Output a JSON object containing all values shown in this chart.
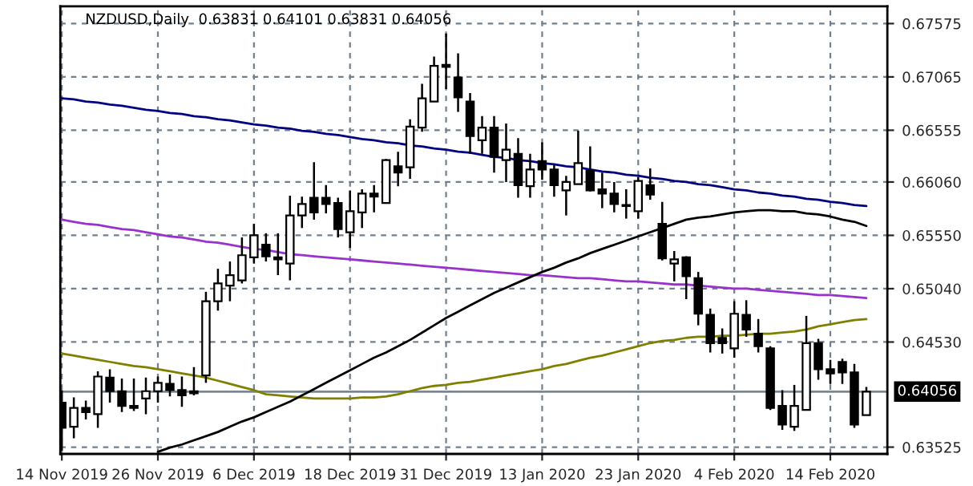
{
  "chart_data": {
    "type": "candlestick",
    "title": "NZDUSD,Daily  0.63831 0.64101 0.63831 0.64056",
    "categories": [
      "14 Nov 2019",
      null,
      null,
      null,
      null,
      null,
      null,
      null,
      "26 Nov 2019",
      null,
      null,
      null,
      null,
      null,
      null,
      null,
      "6 Dec 2019",
      null,
      null,
      null,
      null,
      null,
      null,
      null,
      "18 Dec 2019",
      null,
      null,
      null,
      null,
      null,
      null,
      null,
      "31 Dec 2019",
      null,
      null,
      null,
      null,
      null,
      null,
      null,
      "13 Jan 2020",
      null,
      null,
      null,
      null,
      null,
      null,
      null,
      "23 Jan 2020",
      null,
      null,
      null,
      null,
      null,
      null,
      null,
      "4 Feb 2020",
      null,
      null,
      null,
      null,
      null,
      null,
      null,
      "14 Feb 2020",
      null,
      null,
      null
    ],
    "ohlc": [
      [
        0.6395,
        0.6407,
        0.6349,
        0.6371
      ],
      [
        0.6372,
        0.64,
        0.6361,
        0.639
      ],
      [
        0.639,
        0.6397,
        0.6379,
        0.6386
      ],
      [
        0.6384,
        0.6425,
        0.6371,
        0.642
      ],
      [
        0.6419,
        0.6427,
        0.6395,
        0.6406
      ],
      [
        0.6406,
        0.6418,
        0.6386,
        0.6392
      ],
      [
        0.6392,
        0.6418,
        0.6387,
        0.639
      ],
      [
        0.6399,
        0.6419,
        0.6384,
        0.6406
      ],
      [
        0.6406,
        0.642,
        0.6395,
        0.6414
      ],
      [
        0.6413,
        0.6422,
        0.6401,
        0.6407
      ],
      [
        0.6407,
        0.642,
        0.6391,
        0.6402
      ],
      [
        0.6406,
        0.6429,
        0.6402,
        0.6404
      ],
      [
        0.6421,
        0.6501,
        0.6414,
        0.6492
      ],
      [
        0.6492,
        0.6523,
        0.6483,
        0.6509
      ],
      [
        0.6507,
        0.653,
        0.6492,
        0.6517
      ],
      [
        0.6512,
        0.6553,
        0.6509,
        0.6536
      ],
      [
        0.6534,
        0.6566,
        0.6528,
        0.6555
      ],
      [
        0.6546,
        0.6557,
        0.653,
        0.6535
      ],
      [
        0.6534,
        0.6557,
        0.6517,
        0.6532
      ],
      [
        0.6528,
        0.6593,
        0.6512,
        0.6574
      ],
      [
        0.6574,
        0.6592,
        0.6562,
        0.6585
      ],
      [
        0.6591,
        0.6625,
        0.657,
        0.6577
      ],
      [
        0.6591,
        0.6603,
        0.6576,
        0.6585
      ],
      [
        0.6586,
        0.6591,
        0.6553,
        0.6561
      ],
      [
        0.6558,
        0.6598,
        0.6543,
        0.6578
      ],
      [
        0.6577,
        0.6599,
        0.6562,
        0.6595
      ],
      [
        0.6595,
        0.6603,
        0.6577,
        0.6592
      ],
      [
        0.6586,
        0.6628,
        0.6586,
        0.6627
      ],
      [
        0.6621,
        0.6635,
        0.6602,
        0.6615
      ],
      [
        0.662,
        0.6666,
        0.6609,
        0.6659
      ],
      [
        0.6658,
        0.67,
        0.6654,
        0.6686
      ],
      [
        0.6683,
        0.6726,
        0.6683,
        0.6717
      ],
      [
        0.6718,
        0.6748,
        0.6695,
        0.6716
      ],
      [
        0.6706,
        0.6729,
        0.6673,
        0.6687
      ],
      [
        0.6683,
        0.6691,
        0.6633,
        0.665
      ],
      [
        0.6646,
        0.6669,
        0.6633,
        0.6658
      ],
      [
        0.6658,
        0.6669,
        0.6615,
        0.663
      ],
      [
        0.6627,
        0.6662,
        0.6606,
        0.6637
      ],
      [
        0.6633,
        0.6648,
        0.6591,
        0.6603
      ],
      [
        0.6602,
        0.6633,
        0.6591,
        0.6618
      ],
      [
        0.6626,
        0.6644,
        0.6608,
        0.6618
      ],
      [
        0.6618,
        0.6622,
        0.6592,
        0.6603
      ],
      [
        0.6598,
        0.6612,
        0.6574,
        0.6606
      ],
      [
        0.6604,
        0.6655,
        0.6604,
        0.6624
      ],
      [
        0.6617,
        0.664,
        0.6597,
        0.6598
      ],
      [
        0.6599,
        0.6615,
        0.6581,
        0.6595
      ],
      [
        0.6595,
        0.6606,
        0.6577,
        0.6585
      ],
      [
        0.6584,
        0.6599,
        0.6571,
        0.6583
      ],
      [
        0.6578,
        0.6611,
        0.6571,
        0.6607
      ],
      [
        0.6603,
        0.6619,
        0.6589,
        0.6594
      ],
      [
        0.6566,
        0.6587,
        0.6531,
        0.6533
      ],
      [
        0.6528,
        0.654,
        0.6511,
        0.6532
      ],
      [
        0.6534,
        0.6535,
        0.6494,
        0.6516
      ],
      [
        0.6514,
        0.652,
        0.6469,
        0.648
      ],
      [
        0.6479,
        0.6485,
        0.6443,
        0.6452
      ],
      [
        0.6457,
        0.6466,
        0.6442,
        0.6452
      ],
      [
        0.6447,
        0.6492,
        0.6438,
        0.648
      ],
      [
        0.6479,
        0.6493,
        0.6458,
        0.6465
      ],
      [
        0.6461,
        0.6475,
        0.6443,
        0.6449
      ],
      [
        0.6447,
        0.6449,
        0.6388,
        0.639
      ],
      [
        0.6392,
        0.6407,
        0.6369,
        0.6374
      ],
      [
        0.6372,
        0.6412,
        0.6368,
        0.6392
      ],
      [
        0.6388,
        0.6478,
        0.6388,
        0.6452
      ],
      [
        0.6452,
        0.6456,
        0.6417,
        0.6427
      ],
      [
        0.6427,
        0.6436,
        0.6413,
        0.6423
      ],
      [
        0.6434,
        0.6437,
        0.6413,
        0.6424
      ],
      [
        0.6424,
        0.6432,
        0.6371,
        0.6374
      ],
      [
        0.63831,
        0.64101,
        0.63831,
        0.64056
      ]
    ],
    "series": [
      {
        "type": "line",
        "color": "#000080",
        "values": [
          0.6686,
          0.6685,
          0.6683,
          0.6682,
          0.668,
          0.6679,
          0.6677,
          0.6675,
          0.6674,
          0.6672,
          0.6671,
          0.6669,
          0.6668,
          0.6666,
          0.6665,
          0.6663,
          0.6661,
          0.666,
          0.6658,
          0.6657,
          0.6655,
          0.6654,
          0.6652,
          0.6651,
          0.6649,
          0.6647,
          0.6646,
          0.6644,
          0.6643,
          0.6641,
          0.664,
          0.6638,
          0.6637,
          0.6635,
          0.6634,
          0.6632,
          0.663,
          0.6629,
          0.6627,
          0.6626,
          0.6624,
          0.6623,
          0.6621,
          0.662,
          0.6618,
          0.6616,
          0.6615,
          0.6613,
          0.6612,
          0.661,
          0.6609,
          0.6607,
          0.6606,
          0.6604,
          0.6603,
          0.6601,
          0.6599,
          0.6598,
          0.6596,
          0.6595,
          0.6593,
          0.6592,
          0.659,
          0.6589,
          0.6587,
          0.6586,
          0.6584,
          0.6583
        ]
      },
      {
        "type": "line",
        "color": "#9932cc",
        "values": [
          0.657,
          0.6568,
          0.6566,
          0.6565,
          0.6563,
          0.6561,
          0.656,
          0.6558,
          0.6556,
          0.6554,
          0.6553,
          0.6551,
          0.6549,
          0.6548,
          0.6546,
          0.6544,
          0.6542,
          0.6541,
          0.6539,
          0.6537,
          0.6536,
          0.6535,
          0.6534,
          0.6533,
          0.6532,
          0.6531,
          0.653,
          0.6529,
          0.6528,
          0.6527,
          0.6526,
          0.6525,
          0.6524,
          0.6523,
          0.6522,
          0.6521,
          0.652,
          0.6519,
          0.6518,
          0.6517,
          0.6517,
          0.6516,
          0.6515,
          0.6514,
          0.6514,
          0.6513,
          0.6512,
          0.6511,
          0.6511,
          0.651,
          0.6509,
          0.6508,
          0.6508,
          0.6507,
          0.6506,
          0.6505,
          0.6504,
          0.6504,
          0.6503,
          0.6502,
          0.6501,
          0.65,
          0.6499,
          0.6498,
          0.6498,
          0.6497,
          0.6496,
          0.6495
        ]
      },
      {
        "type": "line",
        "color": "#808000",
        "values": [
          0.6442,
          0.644,
          0.6438,
          0.6436,
          0.6434,
          0.6432,
          0.643,
          0.6429,
          0.6427,
          0.6425,
          0.6423,
          0.6421,
          0.6419,
          0.6416,
          0.6413,
          0.641,
          0.6407,
          0.6403,
          0.6402,
          0.6401,
          0.64,
          0.6399,
          0.6399,
          0.6399,
          0.6399,
          0.64,
          0.64,
          0.6401,
          0.6403,
          0.6406,
          0.6409,
          0.6411,
          0.6412,
          0.6414,
          0.6415,
          0.6417,
          0.6419,
          0.6421,
          0.6423,
          0.6425,
          0.6427,
          0.643,
          0.6432,
          0.6435,
          0.6438,
          0.644,
          0.6443,
          0.6446,
          0.6449,
          0.6452,
          0.6454,
          0.6455,
          0.6457,
          0.6458,
          0.6458,
          0.6459,
          0.6459,
          0.646,
          0.6461,
          0.6461,
          0.6462,
          0.6463,
          0.6465,
          0.6468,
          0.647,
          0.6472,
          0.6474,
          0.6475
        ]
      },
      {
        "type": "line",
        "color": "#000000",
        "values": [
          null,
          null,
          null,
          null,
          null,
          null,
          null,
          null,
          0.6348,
          0.6352,
          0.6355,
          0.6359,
          0.6363,
          0.6367,
          0.6372,
          0.6377,
          0.6381,
          0.6386,
          0.6391,
          0.6396,
          0.6402,
          0.6408,
          0.6414,
          0.642,
          0.6426,
          0.6432,
          0.6438,
          0.6443,
          0.6449,
          0.6455,
          0.6462,
          0.6469,
          0.6476,
          0.6482,
          0.6488,
          0.6494,
          0.65,
          0.6505,
          0.651,
          0.6515,
          0.652,
          0.6524,
          0.6529,
          0.6533,
          0.6538,
          0.6542,
          0.6546,
          0.655,
          0.6554,
          0.6558,
          0.6562,
          0.6566,
          0.657,
          0.6572,
          0.6573,
          0.6575,
          0.6577,
          0.6578,
          0.6579,
          0.6579,
          0.6578,
          0.6578,
          0.6576,
          0.6575,
          0.6573,
          0.657,
          0.6568,
          0.6564
        ]
      }
    ],
    "ref_lines": [
      {
        "axis": "y",
        "value": 0.64056,
        "label": "0.64056",
        "color": "#778899"
      }
    ],
    "ylim": [
      0.6346,
      0.6774
    ],
    "yticks": [
      {
        "value": 0.67575,
        "label": "0.67575"
      },
      {
        "value": 0.67065,
        "label": "0.67065"
      },
      {
        "value": 0.66555,
        "label": "0.66555"
      },
      {
        "value": 0.6606,
        "label": "0.66060"
      },
      {
        "value": 0.6555,
        "label": "0.65550"
      },
      {
        "value": 0.6504,
        "label": "0.65040"
      },
      {
        "value": 0.6453,
        "label": "0.64530"
      },
      {
        "value": 0.63525,
        "label": "0.63525"
      }
    ],
    "grid": true
  }
}
